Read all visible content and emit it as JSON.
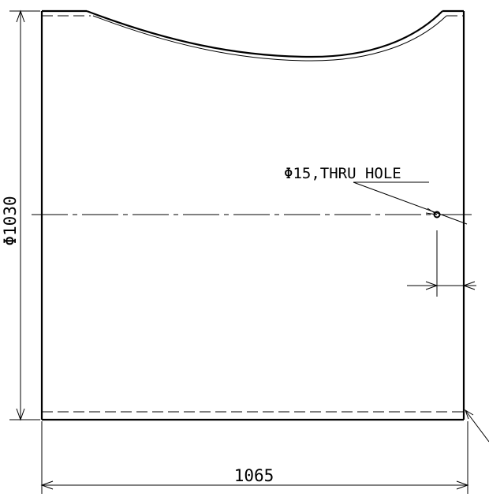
{
  "drawing": {
    "dimensions": {
      "width_label": "1065",
      "diameter_label": "Φ1030"
    },
    "annotations": {
      "hole_note": "Φ15,THRU HOLE"
    },
    "colors": {
      "line": "#000000",
      "background": "#ffffff"
    }
  }
}
